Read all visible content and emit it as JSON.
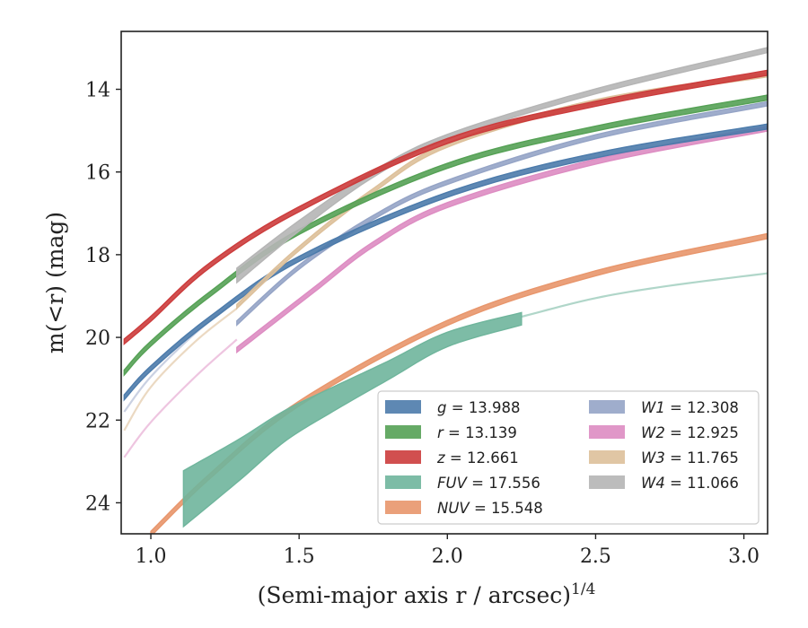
{
  "chart_data": {
    "type": "line",
    "xlabel": "(Semi-major axis r / arcsec)",
    "xlabel_sup": "1/4",
    "ylabel": "m(<r) (mag)",
    "xlim": [
      0.9,
      3.08
    ],
    "ylim": [
      24.75,
      12.6
    ],
    "y_inverted": true,
    "xticks": [
      1.0,
      1.5,
      2.0,
      2.5,
      3.0
    ],
    "xtick_labels": [
      "1.0",
      "1.5",
      "2.0",
      "2.5",
      "3.0"
    ],
    "yticks": [
      14,
      16,
      18,
      20,
      22,
      24
    ],
    "ytick_labels": [
      "14",
      "16",
      "18",
      "20",
      "22",
      "24"
    ],
    "grid": false,
    "legend_position": "lower-right",
    "series": [
      {
        "name": "g = 13.988",
        "legend_var": "g",
        "legend_val": "13.988",
        "color": "#4c7bab",
        "kind": "band",
        "x": [
          0.91,
          1.0,
          1.2,
          1.5,
          2.0,
          2.5,
          3.08
        ],
        "y": [
          21.45,
          20.75,
          19.55,
          18.1,
          16.55,
          15.6,
          14.9
        ],
        "width": 0.12
      },
      {
        "name": "r = 13.139",
        "legend_var": "r",
        "legend_val": "13.139",
        "color": "#55a155",
        "kind": "band",
        "x": [
          0.91,
          1.0,
          1.2,
          1.5,
          2.0,
          2.5,
          3.08
        ],
        "y": [
          20.85,
          20.15,
          18.95,
          17.45,
          15.85,
          14.95,
          14.2
        ],
        "width": 0.12
      },
      {
        "name": "z = 12.661",
        "legend_var": "z",
        "legend_val": "12.661",
        "color": "#cc3c3c",
        "kind": "band",
        "x": [
          0.91,
          1.0,
          1.2,
          1.5,
          2.0,
          2.5,
          3.08
        ],
        "y": [
          20.1,
          19.55,
          18.25,
          16.9,
          15.25,
          14.35,
          13.6
        ],
        "width": 0.12
      },
      {
        "name": "FUV = 17.556",
        "legend_var": "FUV",
        "legend_val": "17.556",
        "color": "#6fb59c",
        "kind": "band",
        "x": [
          1.11,
          1.3,
          1.45,
          1.6,
          1.8,
          2.0,
          2.25
        ],
        "y": [
          23.9,
          22.95,
          22.15,
          21.55,
          20.8,
          20.05,
          19.55
        ],
        "width": [
          1.35,
          1.0,
          0.75,
          0.6,
          0.45,
          0.35,
          0.3
        ]
      },
      {
        "name": "FUV extrapolation",
        "color": "#6fb59c",
        "kind": "line",
        "opacity": 0.55,
        "x": [
          2.25,
          2.5,
          2.75,
          3.08
        ],
        "y": [
          19.5,
          19.05,
          18.75,
          18.45
        ]
      },
      {
        "name": "NUV = 15.548",
        "legend_var": "NUV",
        "legend_val": "15.548",
        "color": "#e8966c",
        "kind": "band",
        "x": [
          1.0,
          1.2,
          1.5,
          2.0,
          2.5,
          3.08
        ],
        "y": [
          24.75,
          23.35,
          21.6,
          19.65,
          18.45,
          17.55
        ],
        "width": 0.12
      },
      {
        "name": "W1 = 12.308",
        "legend_var": "W1",
        "legend_val": "12.308",
        "color": "#95a4c6",
        "kind": "band",
        "x": [
          1.29,
          1.5,
          1.75,
          2.0,
          2.5,
          3.08
        ],
        "y": [
          19.65,
          18.3,
          17.1,
          16.25,
          15.15,
          14.35
        ],
        "width": 0.1
      },
      {
        "name": "W1 faint",
        "color": "#95a4c6",
        "kind": "line",
        "opacity": 0.5,
        "x": [
          0.91,
          1.0,
          1.15,
          1.29
        ],
        "y": [
          21.8,
          20.95,
          19.9,
          19.1
        ]
      },
      {
        "name": "W2 = 12.925",
        "legend_var": "W2",
        "legend_val": "12.925",
        "color": "#dd8cc2",
        "kind": "band",
        "x": [
          1.29,
          1.55,
          1.75,
          2.0,
          2.5,
          3.08
        ],
        "y": [
          20.3,
          18.85,
          17.75,
          16.8,
          15.75,
          14.95
        ],
        "width": 0.12
      },
      {
        "name": "W2 faint",
        "color": "#dd8cc2",
        "kind": "line",
        "opacity": 0.5,
        "x": [
          0.91,
          1.0,
          1.15,
          1.29
        ],
        "y": [
          22.9,
          22.05,
          20.95,
          20.05
        ]
      },
      {
        "name": "W3 = 11.765",
        "legend_var": "W3",
        "legend_val": "11.765",
        "color": "#ddc09a",
        "kind": "band",
        "x": [
          1.29,
          1.5,
          1.75,
          2.0,
          2.5,
          3.08
        ],
        "y": [
          19.25,
          17.85,
          16.45,
          15.35,
          14.3,
          13.65
        ],
        "width": 0.1
      },
      {
        "name": "W3 faint",
        "color": "#ddc09a",
        "kind": "line",
        "opacity": 0.6,
        "x": [
          0.91,
          1.0,
          1.15,
          1.29
        ],
        "y": [
          22.25,
          21.2,
          20.1,
          19.3
        ]
      },
      {
        "name": "W4 = 11.066",
        "legend_var": "W4",
        "legend_val": "11.066",
        "color": "#b5b5b5",
        "kind": "band",
        "x": [
          1.29,
          1.5,
          1.75,
          2.0,
          2.5,
          3.08
        ],
        "y": [
          18.5,
          17.3,
          16.05,
          15.15,
          14.05,
          13.05
        ],
        "width": [
          0.35,
          0.25,
          0.15,
          0.12,
          0.12,
          0.12
        ]
      }
    ]
  }
}
